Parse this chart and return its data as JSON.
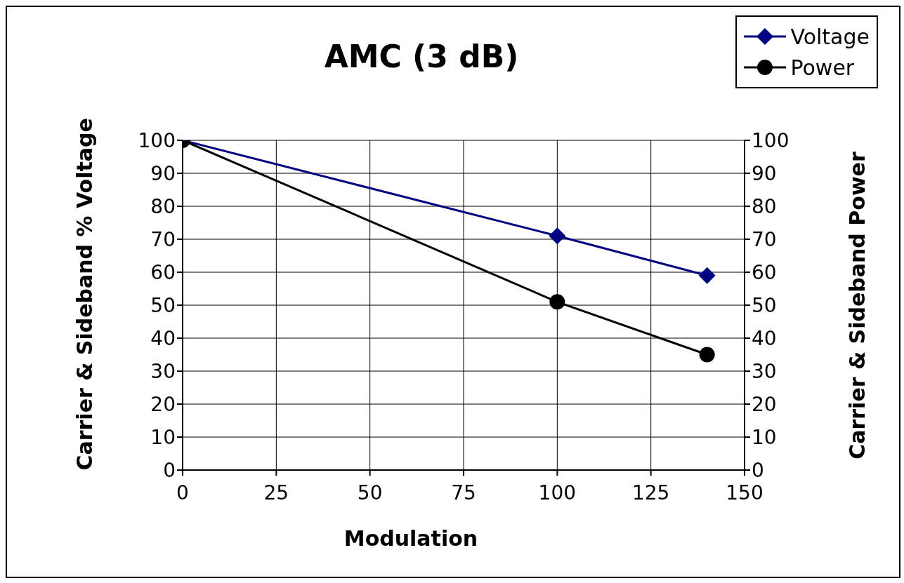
{
  "chart_data": {
    "type": "line",
    "title": "AMC (3 dB)",
    "xlabel": "Modulation",
    "ylabel": "Carrier & Sideband % Voltage",
    "y2label": "Carrier & Sideband Power",
    "x": [
      0,
      100,
      140
    ],
    "series": [
      {
        "name": "Voltage",
        "color": "#000080",
        "values": [
          100,
          71,
          59
        ],
        "marker": "diamond"
      },
      {
        "name": "Power",
        "color": "#000000",
        "values": [
          100,
          51,
          35
        ],
        "marker": "circle",
        "axis": "y2"
      }
    ],
    "xlim": [
      0,
      150
    ],
    "xticks": [
      0,
      25,
      50,
      75,
      100,
      125,
      150
    ],
    "ylim": [
      0,
      100
    ],
    "yticks": [
      0,
      10,
      20,
      30,
      40,
      50,
      60,
      70,
      80,
      90,
      100
    ],
    "y2lim": [
      0,
      100
    ],
    "y2ticks": [
      0,
      10,
      20,
      30,
      40,
      50,
      60,
      70,
      80,
      90,
      100
    ],
    "grid": true,
    "legend": "top right",
    "line_style": "solid"
  }
}
